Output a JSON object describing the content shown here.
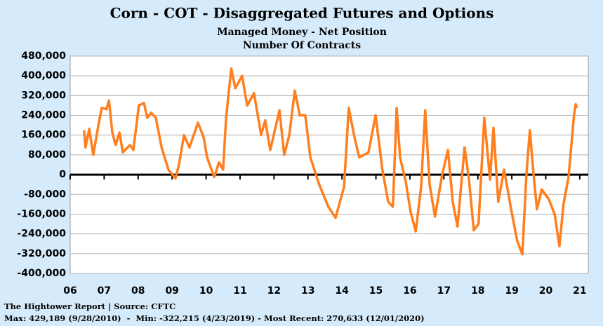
{
  "chart_data": {
    "type": "line",
    "title": "Corn - COT - Disaggregated Futures and Options",
    "subtitle": [
      "Managed Money - Net Position",
      "Number Of Contracts"
    ],
    "source": "The Hightower Report | Source: CFTC",
    "note": "Max: 429,189 (9/28/2010)  -  Min: -322,215 (4/23/2019) - Most Recent: 270,633 (12/01/2020)",
    "xlim": [
      2006,
      2021.25
    ],
    "xticks": [
      {
        "value": 2006,
        "label": "06"
      },
      {
        "value": 2007,
        "label": "07"
      },
      {
        "value": 2008,
        "label": "08"
      },
      {
        "value": 2009,
        "label": "09"
      },
      {
        "value": 2010,
        "label": "10"
      },
      {
        "value": 2011,
        "label": "11"
      },
      {
        "value": 2012,
        "label": "12"
      },
      {
        "value": 2013,
        "label": "13"
      },
      {
        "value": 2014,
        "label": "14"
      },
      {
        "value": 2015,
        "label": "15"
      },
      {
        "value": 2016,
        "label": "16"
      },
      {
        "value": 2017,
        "label": "17"
      },
      {
        "value": 2018,
        "label": "18"
      },
      {
        "value": 2019,
        "label": "19"
      },
      {
        "value": 2020,
        "label": "20"
      },
      {
        "value": 2021,
        "label": "21"
      }
    ],
    "ylim": [
      -400000,
      480000
    ],
    "yticks": [
      {
        "value": -400000,
        "label": "-400,000"
      },
      {
        "value": -320000,
        "label": "-320,000"
      },
      {
        "value": -240000,
        "label": "-240,000"
      },
      {
        "value": -160000,
        "label": "-160,000"
      },
      {
        "value": -80000,
        "label": "-80,000"
      },
      0,
      {
        "value": 80000,
        "label": "80,000"
      },
      {
        "value": 160000,
        "label": "160,000"
      },
      {
        "value": 240000,
        "label": "240,000"
      },
      {
        "value": 320000,
        "label": "320,000"
      },
      {
        "value": 400000,
        "label": "400,000"
      },
      {
        "value": 480000,
        "label": "480,000"
      }
    ],
    "grid": true,
    "series": [
      {
        "name": "Managed Money - Net Position",
        "color": "#ff7f1e",
        "x": [
          2006.41,
          2006.45,
          2006.56,
          2006.68,
          2006.83,
          2006.93,
          2007.07,
          2007.14,
          2007.24,
          2007.34,
          2007.45,
          2007.55,
          2007.76,
          2007.86,
          2008.02,
          2008.17,
          2008.27,
          2008.38,
          2008.52,
          2008.69,
          2008.89,
          2009.1,
          2009.2,
          2009.35,
          2009.51,
          2009.76,
          2009.93,
          2010.03,
          2010.24,
          2010.38,
          2010.5,
          2010.59,
          2010.74,
          2010.86,
          2011.06,
          2011.21,
          2011.41,
          2011.62,
          2011.74,
          2011.89,
          2012.16,
          2012.3,
          2012.45,
          2012.61,
          2012.76,
          2012.92,
          2013.07,
          2013.33,
          2013.6,
          2013.81,
          2014.06,
          2014.2,
          2014.37,
          2014.51,
          2014.78,
          2014.99,
          2015.19,
          2015.36,
          2015.5,
          2015.61,
          2015.71,
          2015.88,
          2016.02,
          2016.17,
          2016.33,
          2016.45,
          2016.58,
          2016.74,
          2016.95,
          2017.12,
          2017.26,
          2017.4,
          2017.61,
          2017.74,
          2017.88,
          2018.02,
          2018.19,
          2018.36,
          2018.46,
          2018.6,
          2018.77,
          2018.85,
          2018.98,
          2019.16,
          2019.31,
          2019.43,
          2019.53,
          2019.64,
          2019.74,
          2019.88,
          2020.09,
          2020.26,
          2020.4,
          2020.52,
          2020.67,
          2020.83,
          2020.88,
          2020.92
        ],
        "values": [
          180000,
          110000,
          185000,
          80000,
          200000,
          270000,
          265000,
          300000,
          170000,
          120000,
          170000,
          90000,
          120000,
          100000,
          280000,
          290000,
          230000,
          250000,
          230000,
          110000,
          20000,
          -15000,
          40000,
          160000,
          110000,
          210000,
          150000,
          70000,
          -10000,
          50000,
          20000,
          230000,
          429189,
          350000,
          400000,
          280000,
          330000,
          160000,
          220000,
          100000,
          260000,
          80000,
          160000,
          340000,
          240000,
          240000,
          70000,
          -40000,
          -130000,
          -175000,
          -50000,
          270000,
          150000,
          70000,
          90000,
          240000,
          20000,
          -110000,
          -130000,
          270000,
          70000,
          -30000,
          -150000,
          -230000,
          -50000,
          260000,
          -40000,
          -170000,
          0,
          100000,
          -110000,
          -210000,
          110000,
          -20000,
          -225000,
          -200000,
          230000,
          -20000,
          190000,
          -110000,
          20000,
          -40000,
          -140000,
          -270000,
          -322215,
          0,
          180000,
          0,
          -140000,
          -60000,
          -100000,
          -160000,
          -290000,
          -120000,
          -10000,
          240000,
          285000,
          270633
        ]
      }
    ]
  }
}
